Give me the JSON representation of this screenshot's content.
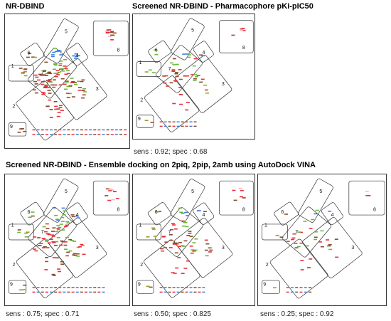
{
  "titles": {
    "panel_a": "NR-DBIND",
    "panel_b": "Screened NR-DBIND - Pharmacophore pKi-pIC50",
    "row2": "Screened NR-DBIND - Ensemble docking on 2piq, 2pip, 2amb using AutoDock VINA"
  },
  "captions": {
    "panel_b": "sens : 0.92; spec : 0.68",
    "panel_c": "sens : 0.75; spec : 0.71",
    "panel_d": "sens : 0.50; spec : 0.825",
    "panel_e": "sens : 0.25; spec : 0.92"
  },
  "regions": [
    "1",
    "2",
    "3",
    "4",
    "5",
    "6",
    "7",
    "8",
    "9"
  ],
  "colors": {
    "red": "#e8303a",
    "green": "#6cb83a",
    "blue": "#3b7fe0",
    "brown": "#8a4a2a",
    "pink": "#f4b8d0",
    "olive": "#9a9a30"
  },
  "densities": {
    "panel_a": 1.0,
    "panel_b": 0.4,
    "panel_c": 0.75,
    "panel_d": 0.5,
    "panel_e": 0.28
  }
}
